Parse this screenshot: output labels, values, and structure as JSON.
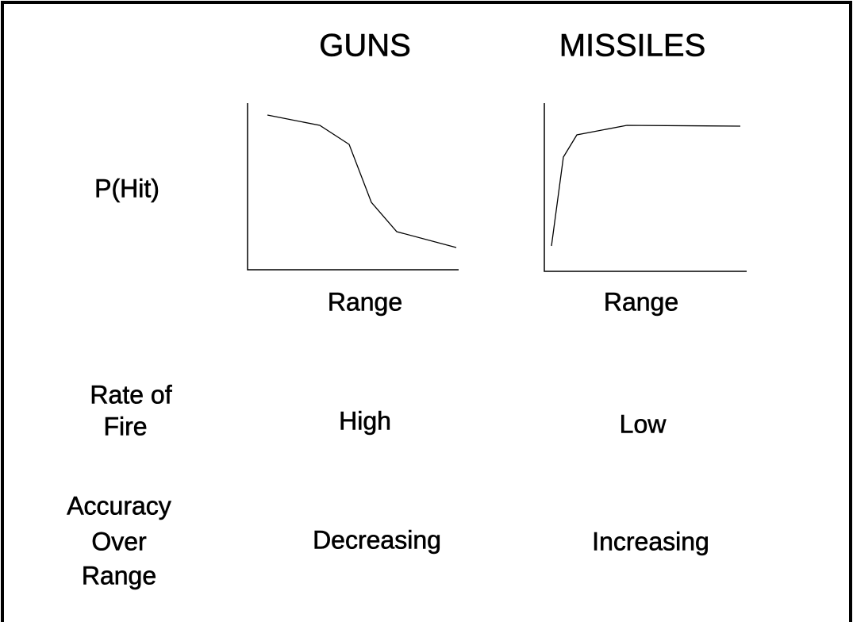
{
  "columns": [
    "GUNS",
    "MISSILES"
  ],
  "rows": [
    {
      "label": [
        "P(Hit)"
      ],
      "x_axis_labels": [
        "Range",
        "Range"
      ]
    },
    {
      "label": [
        "Rate of",
        "Fire"
      ],
      "values": [
        "High",
        "Low"
      ]
    },
    {
      "label": [
        "Accuracy",
        "Over",
        "Range"
      ],
      "values": [
        "Decreasing",
        "Increasing"
      ]
    }
  ]
}
